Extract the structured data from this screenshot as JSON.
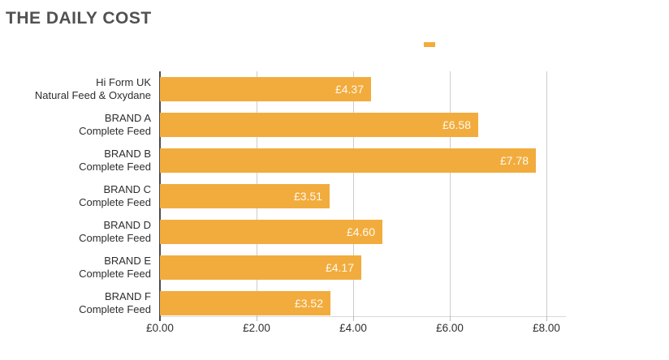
{
  "title": "THE DAILY COST",
  "legend": {
    "swatch_color": "#F2AC3D"
  },
  "colors": {
    "bar": "#F2AC3D",
    "gridline": "#cccccc",
    "axis": "#4a4a4a",
    "title_text": "#515153",
    "value_text": "#ffffff"
  },
  "chart_data": {
    "type": "bar",
    "orientation": "horizontal",
    "title": "THE DAILY COST",
    "categories": [
      [
        "Hi Form UK",
        "Natural Feed & Oxydane"
      ],
      [
        "BRAND A",
        "Complete Feed"
      ],
      [
        "BRAND B",
        "Complete Feed"
      ],
      [
        "BRAND C",
        "Complete Feed"
      ],
      [
        "BRAND D",
        "Complete Feed"
      ],
      [
        "BRAND E",
        "Complete Feed"
      ],
      [
        "BRAND F",
        "Complete Feed"
      ]
    ],
    "values": [
      4.37,
      6.58,
      7.78,
      3.51,
      4.6,
      4.17,
      3.52
    ],
    "value_labels": [
      "£4.37",
      "£6.58",
      "£7.78",
      "£3.51",
      "£4.60",
      "£4.17",
      "£3.52"
    ],
    "x_ticks": [
      0,
      2,
      4,
      6,
      8
    ],
    "x_tick_labels": [
      "£0.00",
      "£2.00",
      "£4.00",
      "£6.00",
      "£8.00"
    ],
    "xlim": [
      0,
      8.4
    ],
    "xlabel": "",
    "ylabel": "",
    "grid": true,
    "legend_position": "top-center",
    "bar_color": "#F2AC3D",
    "value_label_position": "inside-right"
  }
}
